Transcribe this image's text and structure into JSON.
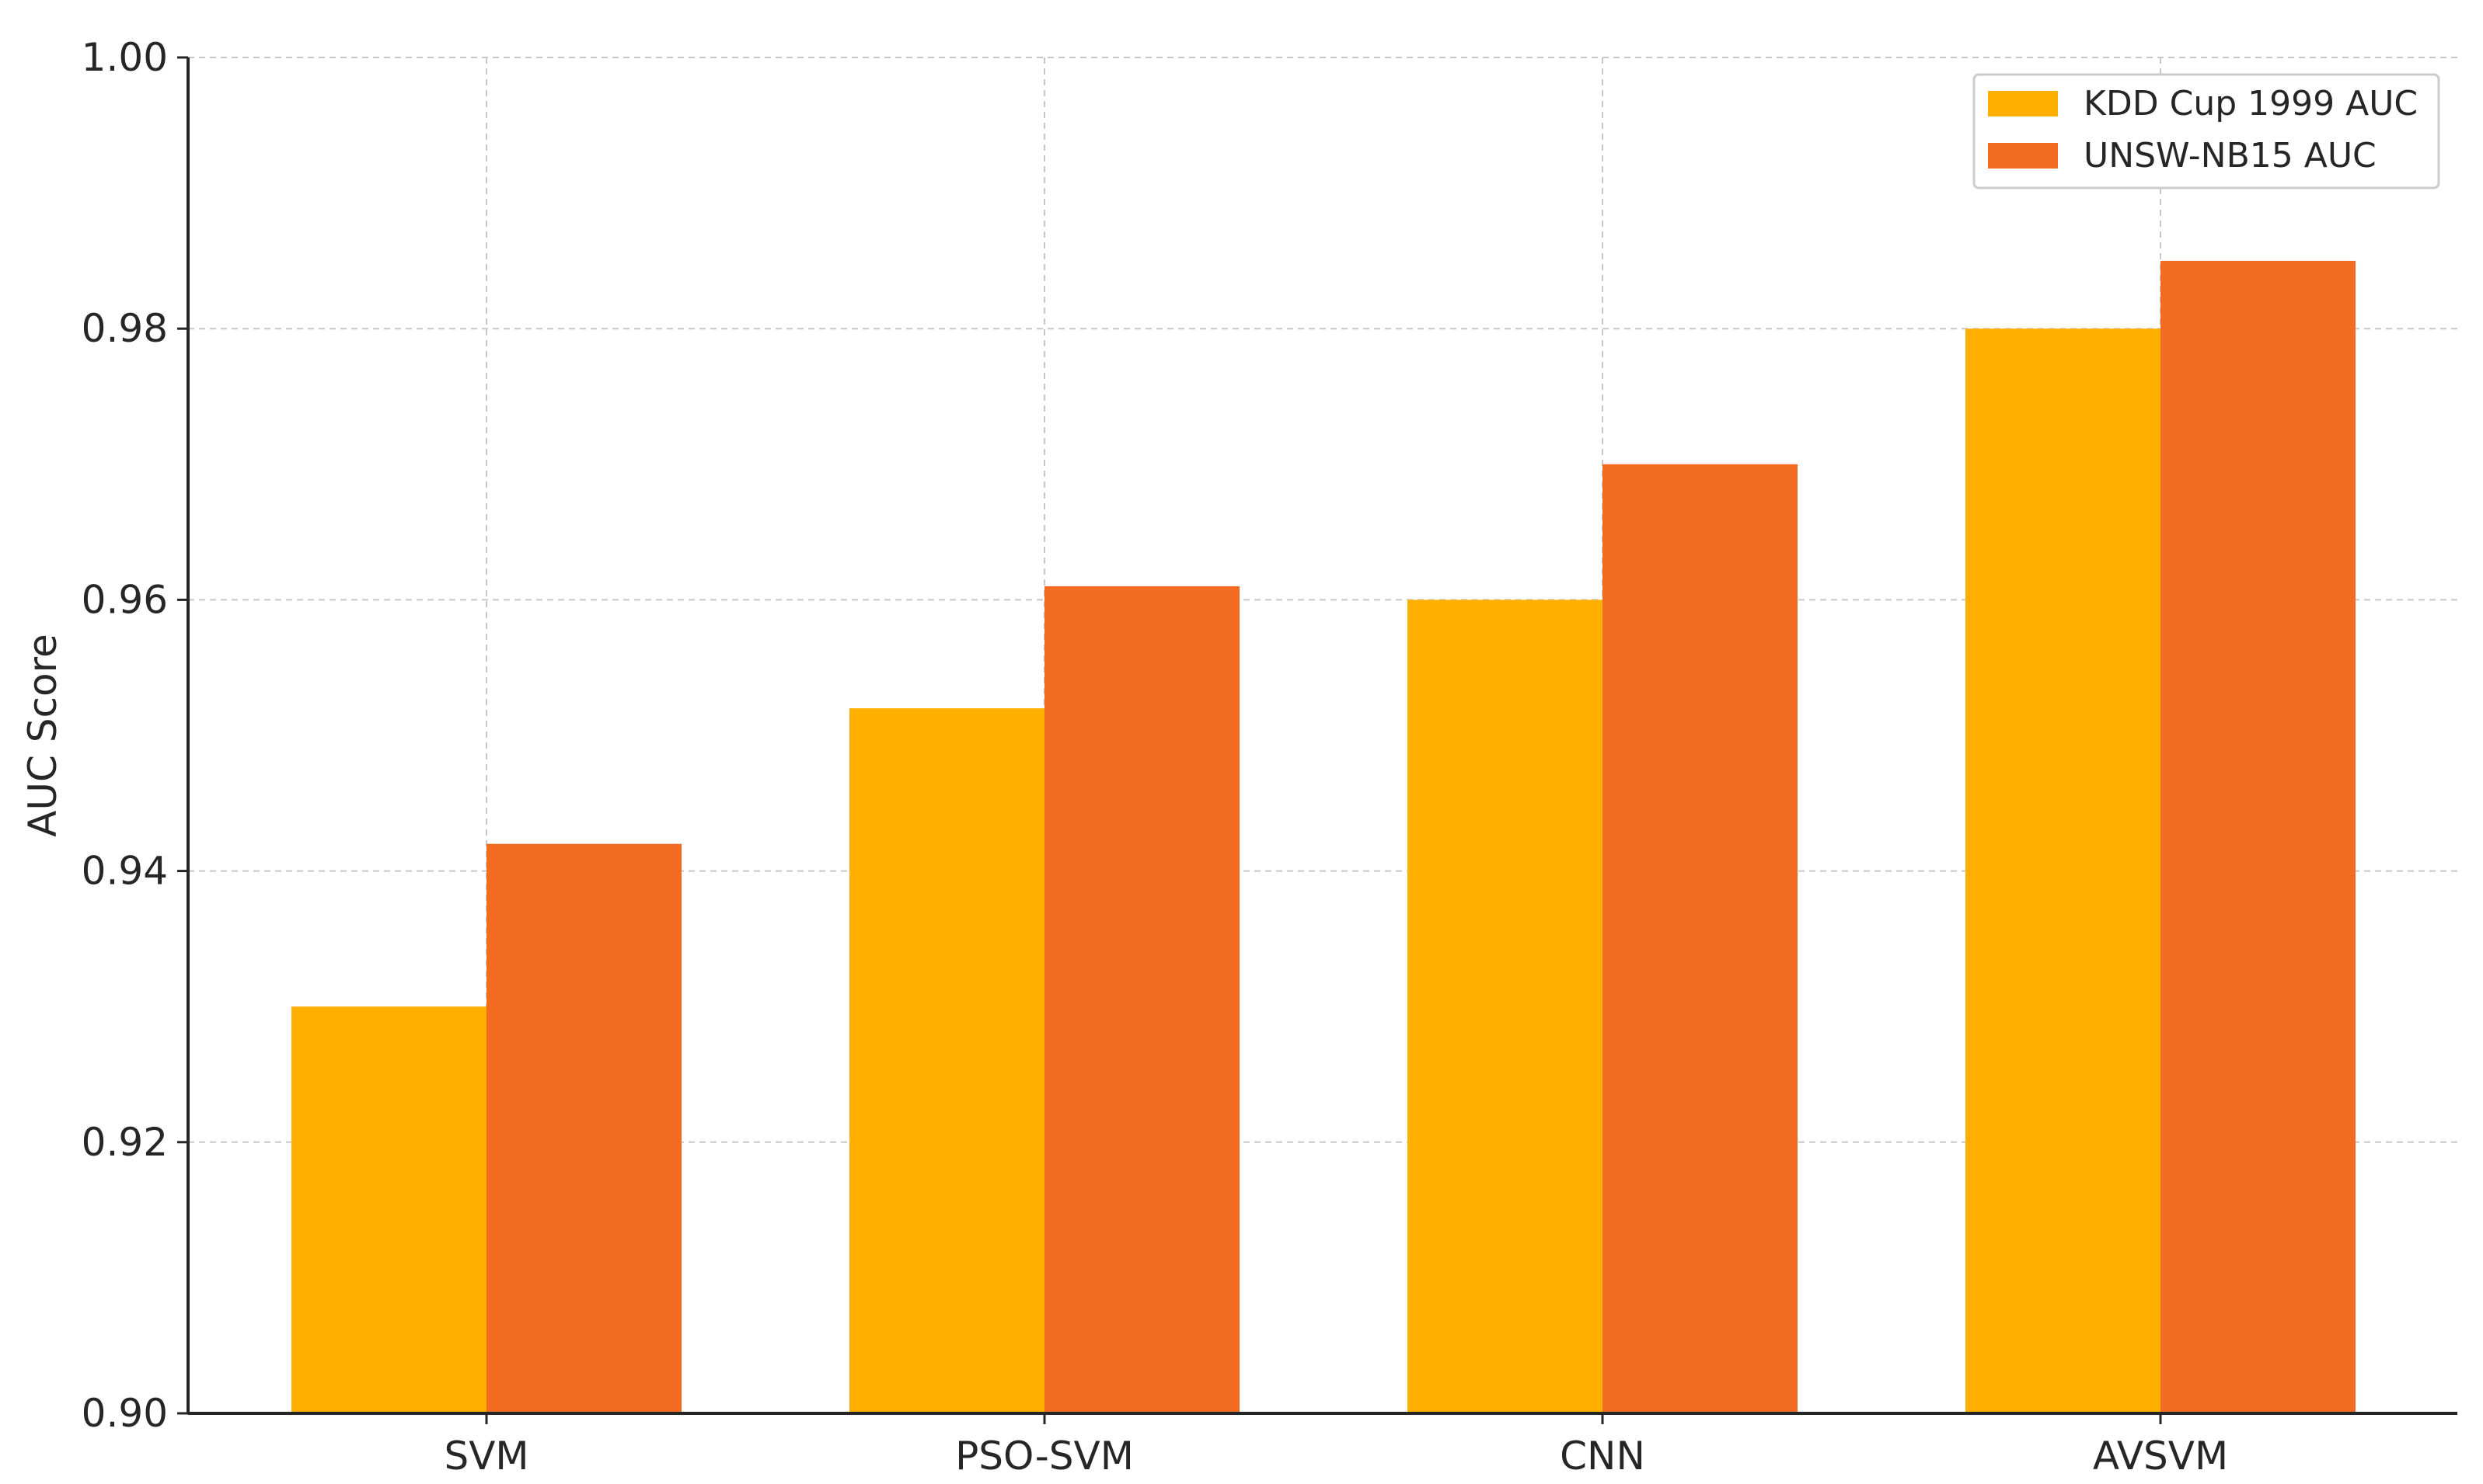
{
  "chart_data": {
    "type": "bar",
    "title": "",
    "xlabel": "",
    "ylabel": "AUC Score",
    "categories": [
      "SVM",
      "PSO-SVM",
      "CNN",
      "AVSVM"
    ],
    "series": [
      {
        "name": "KDD Cup 1999 AUC",
        "values": [
          0.93,
          0.952,
          0.96,
          0.98
        ],
        "color": "#FFAF00"
      },
      {
        "name": "UNSW-NB15 AUC",
        "values": [
          0.942,
          0.961,
          0.97,
          0.985
        ],
        "color": "#F26B21"
      }
    ],
    "ylim": [
      0.9,
      1.0
    ],
    "yticks": [
      "0.90",
      "0.92",
      "0.94",
      "0.96",
      "0.98",
      "1.00"
    ],
    "grid": true,
    "legend_position": "top-right"
  }
}
